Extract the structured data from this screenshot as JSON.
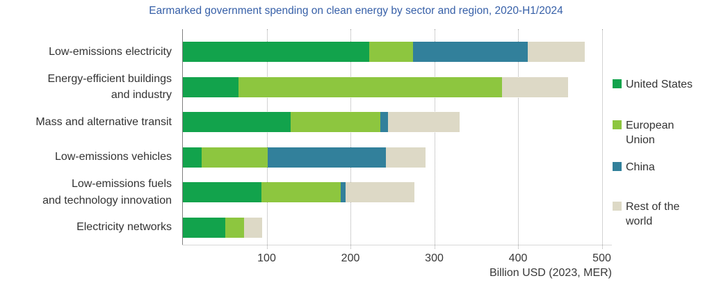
{
  "title": "Earmarked government spending on clean energy by sector and region, 2020-H1/2024",
  "colors": {
    "title_text": "#3760a8",
    "axis_text": "#383838",
    "label_text": "#333333",
    "gridline": "#a6a6a6",
    "axis_line": "#808080"
  },
  "chart_data": {
    "type": "bar",
    "orientation": "horizontal",
    "stacked": true,
    "title": "Earmarked government spending on clean energy by sector and region, 2020-H1/2024",
    "categories": [
      "Low-emissions electricity",
      "Energy-efficient buildings\nand industry",
      "Mass and alternative transit",
      "Low-emissions vehicles",
      "Low-emissions fuels\nand technology innovation",
      "Electricity networks"
    ],
    "series": [
      {
        "name": "United States",
        "color": "#12a34c",
        "values": [
          222,
          66,
          129,
          22,
          94,
          51
        ]
      },
      {
        "name": "European Union",
        "color": "#8dc63f",
        "values": [
          53,
          315,
          107,
          79,
          94,
          22
        ]
      },
      {
        "name": "China",
        "color": "#32809b",
        "values": [
          137,
          0,
          9,
          141,
          6,
          0
        ]
      },
      {
        "name": "Rest of the world",
        "color": "#ddd9c6",
        "values": [
          68,
          79,
          85,
          48,
          82,
          22
        ]
      }
    ],
    "totals": [
      480,
      460,
      330,
      290,
      276,
      95
    ],
    "legend_labels": [
      "United States",
      "European\nUnion",
      "China",
      "Rest of the\nworld"
    ],
    "legend_position": "right",
    "xlabel": "Billion USD (2023, MER)",
    "x_ticks": [
      100,
      200,
      300,
      400,
      500
    ],
    "xlim": [
      0,
      512
    ],
    "grid": "dotted-vertical"
  }
}
